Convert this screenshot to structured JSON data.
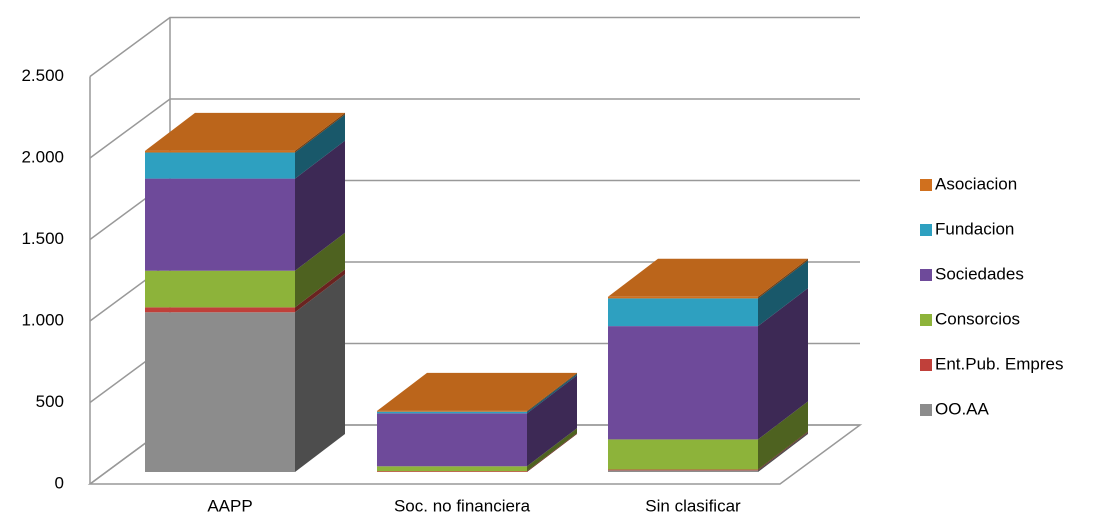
{
  "chart_data": {
    "type": "bar3d_stacked",
    "categories": [
      "AAPP",
      "Soc. no financiera",
      "Sin clasificar"
    ],
    "series": [
      {
        "name": "OO.AA",
        "color": "#8c8c8c",
        "values": [
          980,
          0,
          10
        ]
      },
      {
        "name": "Ent.Pub. Empres",
        "color": "#c0403a",
        "values": [
          30,
          5,
          5
        ]
      },
      {
        "name": "Consorcios",
        "color": "#8db33a",
        "values": [
          225,
          30,
          185
        ]
      },
      {
        "name": "Sociedades",
        "color": "#6e4a9a",
        "values": [
          565,
          325,
          695
        ]
      },
      {
        "name": "Fundacion",
        "color": "#2ea0c0",
        "values": [
          160,
          10,
          170
        ]
      },
      {
        "name": "Asociacion",
        "color": "#d0701e",
        "values": [
          10,
          5,
          10
        ]
      }
    ],
    "ylim": [
      0,
      2500
    ],
    "yticks": [
      0,
      500,
      {
        "value": 1000,
        "label": "1.000"
      },
      {
        "value": 1500,
        "label": "1.500"
      },
      {
        "value": 2000,
        "label": "2.000"
      },
      {
        "value": 2500,
        "label": "2.500"
      }
    ],
    "grid": true
  }
}
